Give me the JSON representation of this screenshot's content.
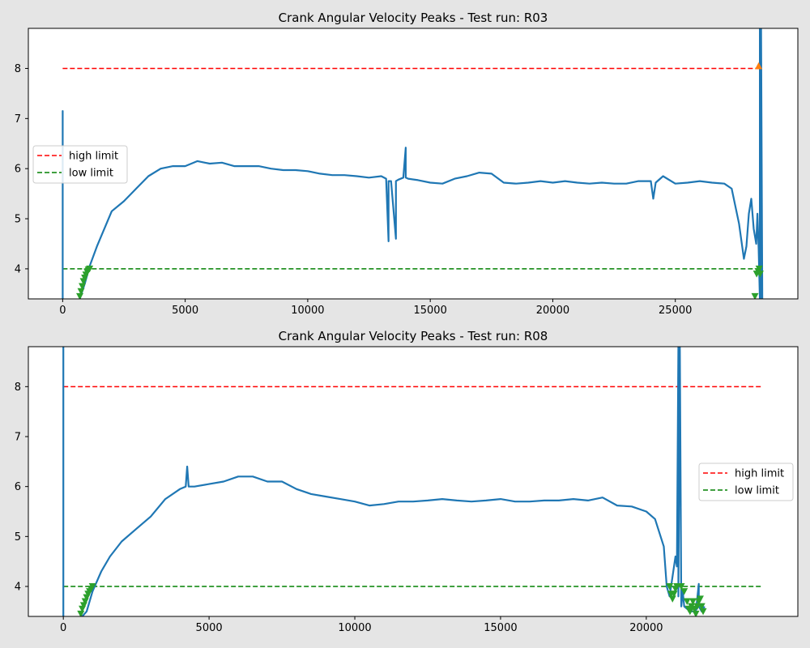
{
  "colors": {
    "figure_bg": "#e5e5e5",
    "axes_bg": "#ffffff",
    "signal": "#1f77b4",
    "high_limit": "#ff0000",
    "low_limit": "#008000",
    "high_marker": "#ff7f0e",
    "low_marker": "#2ca02c"
  },
  "chart_data": [
    {
      "type": "line",
      "title": "Crank Angular Velocity Peaks - Test run: R03",
      "xlabel": "",
      "ylabel": "",
      "xlim": [
        -1400,
        30000
      ],
      "ylim": [
        3.4,
        8.8
      ],
      "xticks": [
        0,
        5000,
        10000,
        15000,
        20000,
        25000
      ],
      "yticks": [
        4,
        5,
        6,
        7,
        8
      ],
      "grid": false,
      "legend_position": "center-left",
      "legend": [
        {
          "label": "high limit",
          "color": "#ff0000",
          "style": "dashed"
        },
        {
          "label": "low limit",
          "color": "#008000",
          "style": "dashed"
        }
      ],
      "limits": {
        "high": 8,
        "low": 4,
        "x_range": [
          0,
          28500
        ]
      },
      "series": [
        {
          "x": [
            0,
            0,
            0,
            0,
            150,
            400,
            700,
            900,
            1100,
            1400,
            1700,
            2000,
            2500,
            3000,
            3500,
            4000,
            4500,
            5000,
            5500,
            6000,
            6500,
            7000,
            7500,
            8000,
            8500,
            9000,
            9500,
            10000,
            10500,
            11000,
            11500,
            12000,
            12500,
            13000,
            13200,
            13300,
            13300,
            13400,
            13600,
            13600,
            13700,
            13900,
            14000,
            14000,
            14100,
            14500,
            15000,
            15500,
            16000,
            16500,
            17000,
            17500,
            18000,
            18500,
            19000,
            19500,
            20000,
            20500,
            21000,
            21500,
            22000,
            22500,
            23000,
            23500,
            24000,
            24100,
            24200,
            24500,
            25000,
            25500,
            26000,
            26500,
            27000,
            27300,
            27600,
            27800,
            27900,
            28000,
            28100,
            28200,
            28300,
            28350,
            28400,
            28450,
            28450,
            28500,
            28500,
            28550
          ],
          "values": [
            3.4,
            7.15,
            3.4,
            3.4,
            3.3,
            3.3,
            3.4,
            3.7,
            4.05,
            4.45,
            4.8,
            5.15,
            5.35,
            5.6,
            5.85,
            6.0,
            6.05,
            6.05,
            6.15,
            6.1,
            6.12,
            6.05,
            6.05,
            6.05,
            6.0,
            5.97,
            5.97,
            5.95,
            5.9,
            5.87,
            5.87,
            5.85,
            5.82,
            5.85,
            5.8,
            4.55,
            5.75,
            5.75,
            4.6,
            5.75,
            5.78,
            5.82,
            6.42,
            5.82,
            5.8,
            5.77,
            5.72,
            5.7,
            5.8,
            5.85,
            5.92,
            5.9,
            5.72,
            5.7,
            5.72,
            5.75,
            5.72,
            5.75,
            5.72,
            5.7,
            5.72,
            5.7,
            5.7,
            5.75,
            5.75,
            5.4,
            5.72,
            5.85,
            5.7,
            5.72,
            5.75,
            5.72,
            5.7,
            5.6,
            4.9,
            4.2,
            4.45,
            5.1,
            5.4,
            4.8,
            4.5,
            5.1,
            4.4,
            3.4,
            8.8,
            3.4,
            8.8,
            3.4
          ]
        }
      ],
      "low_markers": {
        "x": [
          700,
          750,
          800,
          850,
          900,
          950,
          1000,
          1050,
          1100,
          28250,
          28320,
          28380,
          28420,
          28460
        ],
        "values": [
          3.45,
          3.55,
          3.65,
          3.75,
          3.82,
          3.88,
          3.94,
          3.98,
          4.0,
          3.45,
          3.9,
          3.95,
          4.0,
          3.9
        ]
      },
      "high_markers": {
        "x": [
          28400
        ],
        "values": [
          8.05
        ]
      }
    },
    {
      "type": "line",
      "title": "Crank Angular Velocity Peaks - Test run: R08",
      "xlabel": "",
      "ylabel": "",
      "xlim": [
        -1200,
        25200
      ],
      "ylim": [
        3.4,
        8.8
      ],
      "xticks": [
        0,
        5000,
        10000,
        15000,
        20000
      ],
      "yticks": [
        4,
        5,
        6,
        7,
        8
      ],
      "grid": false,
      "legend_position": "center-right",
      "legend": [
        {
          "label": "high limit",
          "color": "#ff0000",
          "style": "dashed"
        },
        {
          "label": "low limit",
          "color": "#008000",
          "style": "dashed"
        }
      ],
      "limits": {
        "high": 8,
        "low": 4,
        "x_range": [
          0,
          24000
        ]
      },
      "series": [
        {
          "x": [
            0,
            0,
            0,
            100,
            500,
            800,
            1000,
            1300,
            1600,
            2000,
            2500,
            3000,
            3500,
            4000,
            4200,
            4250,
            4300,
            4500,
            5000,
            5500,
            6000,
            6500,
            7000,
            7500,
            8000,
            8500,
            9000,
            9500,
            10000,
            10500,
            11000,
            11500,
            12000,
            12500,
            13000,
            13500,
            14000,
            14500,
            15000,
            15500,
            16000,
            16500,
            17000,
            17500,
            18000,
            18500,
            19000,
            19500,
            20000,
            20300,
            20600,
            20700,
            20800,
            20900,
            21000,
            21050,
            21100,
            21100,
            21150,
            21200,
            21250,
            21300,
            21500,
            21700,
            21800,
            21800,
            21900,
            22000
          ],
          "values": [
            3.4,
            8.8,
            3.4,
            3.3,
            3.3,
            3.5,
            3.9,
            4.3,
            4.6,
            4.9,
            5.15,
            5.4,
            5.75,
            5.95,
            6.0,
            6.4,
            6.0,
            6.0,
            6.05,
            6.1,
            6.2,
            6.2,
            6.1,
            6.1,
            5.95,
            5.85,
            5.8,
            5.75,
            5.7,
            5.62,
            5.65,
            5.7,
            5.7,
            5.72,
            5.75,
            5.72,
            5.7,
            5.72,
            5.75,
            5.7,
            5.7,
            5.72,
            5.72,
            5.75,
            5.72,
            5.78,
            5.62,
            5.6,
            5.5,
            5.35,
            4.8,
            4.0,
            3.8,
            4.2,
            4.6,
            4.4,
            8.8,
            3.8,
            8.8,
            3.6,
            3.9,
            3.6,
            3.5,
            3.5,
            4.05,
            3.6,
            3.5,
            3.6
          ]
        }
      ],
      "low_markers": {
        "x": [
          600,
          650,
          700,
          750,
          800,
          850,
          900,
          950,
          1000,
          20800,
          20850,
          20900,
          20950,
          21000,
          21050,
          21200,
          21300,
          21400,
          21450,
          21500,
          21550,
          21600,
          21650,
          21700,
          21750,
          21800,
          21850,
          21900,
          21950
        ],
        "values": [
          3.45,
          3.55,
          3.62,
          3.7,
          3.78,
          3.85,
          3.9,
          3.95,
          4.0,
          4.0,
          3.85,
          3.75,
          3.85,
          3.95,
          4.0,
          4.0,
          3.9,
          3.7,
          3.55,
          3.5,
          3.6,
          3.7,
          3.55,
          3.45,
          3.6,
          3.7,
          3.75,
          3.6,
          3.5
        ]
      },
      "high_markers": {
        "x": [],
        "values": []
      }
    }
  ]
}
